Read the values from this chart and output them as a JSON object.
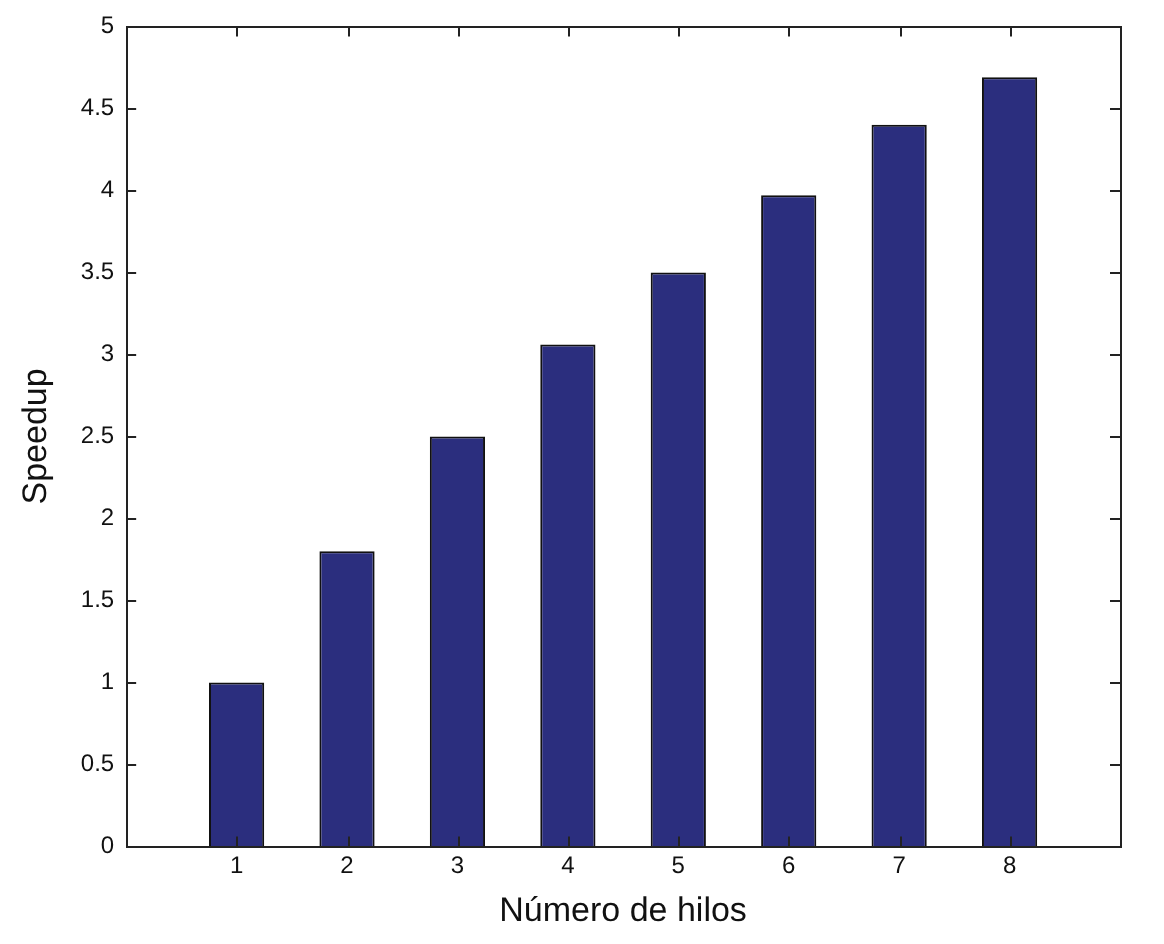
{
  "chart_data": {
    "type": "bar",
    "xlabel": "Número de hilos",
    "ylabel": "Speedup",
    "x": [
      1,
      2,
      3,
      4,
      5,
      6,
      7,
      8
    ],
    "values": [
      1.0,
      1.8,
      2.5,
      3.06,
      3.5,
      3.97,
      4.4,
      4.69
    ],
    "color": "#2b2e7e",
    "xlim": [
      0,
      9
    ],
    "xticks": [
      1,
      2,
      3,
      4,
      5,
      6,
      7,
      8
    ],
    "ylim": [
      0,
      5
    ],
    "yticks": [
      0,
      0.5,
      1,
      1.5,
      2,
      2.5,
      3,
      3.5,
      4,
      4.5,
      5
    ],
    "grid": false,
    "legend": false
  }
}
